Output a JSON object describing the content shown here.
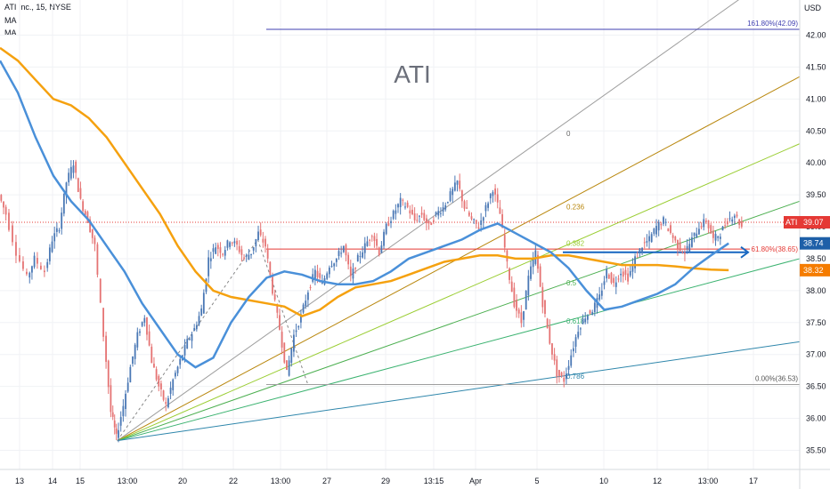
{
  "header": {
    "symbol_line": "ATI Inc., 15, NYSE",
    "indicator_1": "MA",
    "indicator_2": "MA"
  },
  "watermark": "ATI",
  "currency_label": "USD",
  "y_axis": {
    "ticks": [
      "42.00",
      "41.50",
      "41.00",
      "40.50",
      "40.00",
      "39.50",
      "39.00",
      "38.50",
      "38.00",
      "37.50",
      "37.00",
      "36.50",
      "36.00",
      "35.50"
    ],
    "min": 35.2,
    "max": 42.55
  },
  "x_axis": {
    "ticks": [
      "13",
      "14",
      "15",
      "13:00",
      "20",
      "22",
      "13:00",
      "27",
      "29",
      "13:15",
      "Apr",
      "5",
      "10",
      "12",
      "13:00",
      "17"
    ]
  },
  "price_tags": {
    "symbol": "ATI",
    "last": "39.07",
    "ma_fast": "38.74",
    "ma_slow": "38.32"
  },
  "annotations": {
    "fib_top": "161.80%(42.09)",
    "fib_mid": "61.80%(38.65)",
    "fib_low": "0.00%(36.53)",
    "fan_levels": [
      "0",
      "0.236",
      "0.382",
      "0.5",
      "0.618",
      "0.786"
    ]
  },
  "colors": {
    "ma_fast": "#4a90d9",
    "ma_slow": "#f5a10f",
    "up": "#4a78b5",
    "down": "#e57373",
    "fib_line": "#3f3fb0",
    "horizontal_red": "#e53935",
    "arrow_blue": "#1565c0",
    "tag_red": "#e53935",
    "tag_blue": "#1e5fa8",
    "tag_orange": "#f57c00"
  },
  "chart_data": {
    "type": "line",
    "title": "ATI Inc., 15, NYSE",
    "xlabel": "",
    "ylabel": "USD",
    "ylim": [
      35.2,
      42.55
    ],
    "price_path": [
      [
        0.0,
        39.5
      ],
      [
        0.4,
        39.2
      ],
      [
        1.0,
        38.6
      ],
      [
        1.6,
        38.2
      ],
      [
        2.0,
        38.5
      ],
      [
        2.6,
        38.3
      ],
      [
        3.0,
        38.8
      ],
      [
        3.4,
        39.0
      ],
      [
        3.8,
        39.7
      ],
      [
        4.2,
        40.0
      ],
      [
        4.6,
        39.4
      ],
      [
        5.0,
        39.1
      ],
      [
        5.4,
        38.7
      ],
      [
        5.9,
        37.3
      ],
      [
        6.3,
        36.1
      ],
      [
        6.6,
        35.7
      ],
      [
        7.0,
        36.2
      ],
      [
        7.4,
        36.8
      ],
      [
        7.8,
        37.3
      ],
      [
        8.2,
        37.6
      ],
      [
        8.6,
        36.9
      ],
      [
        9.0,
        36.5
      ],
      [
        9.4,
        36.2
      ],
      [
        9.8,
        36.6
      ],
      [
        10.2,
        36.9
      ],
      [
        10.6,
        37.2
      ],
      [
        11.0,
        37.4
      ],
      [
        11.4,
        37.7
      ],
      [
        11.8,
        38.5
      ],
      [
        12.2,
        38.7
      ],
      [
        12.6,
        38.6
      ],
      [
        13.0,
        38.8
      ],
      [
        13.4,
        38.7
      ],
      [
        13.8,
        38.5
      ],
      [
        14.2,
        38.6
      ],
      [
        14.6,
        38.9
      ],
      [
        15.0,
        38.7
      ],
      [
        15.4,
        38.0
      ],
      [
        15.8,
        37.4
      ],
      [
        16.2,
        36.7
      ],
      [
        16.6,
        37.3
      ],
      [
        17.0,
        37.6
      ],
      [
        17.4,
        38.0
      ],
      [
        17.8,
        38.3
      ],
      [
        18.2,
        38.1
      ],
      [
        18.6,
        38.4
      ],
      [
        19.0,
        38.5
      ],
      [
        19.4,
        38.7
      ],
      [
        19.8,
        38.2
      ],
      [
        20.2,
        38.5
      ],
      [
        20.6,
        38.7
      ],
      [
        21.0,
        38.9
      ],
      [
        21.4,
        38.6
      ],
      [
        21.8,
        39.0
      ],
      [
        22.2,
        39.2
      ],
      [
        22.6,
        39.4
      ],
      [
        23.0,
        39.3
      ],
      [
        23.4,
        39.1
      ],
      [
        23.8,
        39.2
      ],
      [
        24.2,
        39.0
      ],
      [
        24.6,
        39.2
      ],
      [
        25.0,
        39.3
      ],
      [
        25.4,
        39.5
      ],
      [
        25.8,
        39.7
      ],
      [
        26.2,
        39.3
      ],
      [
        26.6,
        39.1
      ],
      [
        27.0,
        39.0
      ],
      [
        27.4,
        39.3
      ],
      [
        27.8,
        39.6
      ],
      [
        28.2,
        39.2
      ],
      [
        28.6,
        38.4
      ],
      [
        29.0,
        37.8
      ],
      [
        29.4,
        37.5
      ],
      [
        29.8,
        38.2
      ],
      [
        30.2,
        38.6
      ],
      [
        30.6,
        37.8
      ],
      [
        31.0,
        37.2
      ],
      [
        31.4,
        36.7
      ],
      [
        31.8,
        36.6
      ],
      [
        32.2,
        37.0
      ],
      [
        32.6,
        37.4
      ],
      [
        33.0,
        37.6
      ],
      [
        33.4,
        37.7
      ],
      [
        33.8,
        37.9
      ],
      [
        34.2,
        38.3
      ],
      [
        34.6,
        38.1
      ],
      [
        35.0,
        38.3
      ],
      [
        35.4,
        38.2
      ],
      [
        35.8,
        38.5
      ],
      [
        36.2,
        38.7
      ],
      [
        36.6,
        38.8
      ],
      [
        37.0,
        39.0
      ],
      [
        37.4,
        39.1
      ],
      [
        37.8,
        38.9
      ],
      [
        38.2,
        38.7
      ],
      [
        38.6,
        38.6
      ],
      [
        39.0,
        38.8
      ],
      [
        39.4,
        39.0
      ],
      [
        39.8,
        39.1
      ],
      [
        40.2,
        38.8
      ],
      [
        40.6,
        38.9
      ],
      [
        41.0,
        39.1
      ],
      [
        41.4,
        39.2
      ],
      [
        41.8,
        39.0
      ]
    ],
    "series": [
      {
        "name": "MA",
        "values": [
          [
            0.0,
            41.6
          ],
          [
            1.0,
            41.1
          ],
          [
            2.0,
            40.4
          ],
          [
            3.0,
            39.8
          ],
          [
            4.0,
            39.4
          ],
          [
            5.0,
            39.1
          ],
          [
            6.0,
            38.7
          ],
          [
            7.0,
            38.3
          ],
          [
            8.0,
            37.8
          ],
          [
            9.0,
            37.4
          ],
          [
            10.0,
            37.0
          ],
          [
            11.0,
            36.8
          ],
          [
            12.0,
            36.95
          ],
          [
            13.0,
            37.5
          ],
          [
            14.0,
            37.9
          ],
          [
            15.0,
            38.2
          ],
          [
            16.0,
            38.3
          ],
          [
            17.0,
            38.25
          ],
          [
            18.0,
            38.15
          ],
          [
            19.0,
            38.1
          ],
          [
            20.0,
            38.1
          ],
          [
            21.0,
            38.15
          ],
          [
            22.0,
            38.3
          ],
          [
            23.0,
            38.5
          ],
          [
            24.0,
            38.6
          ],
          [
            25.0,
            38.7
          ],
          [
            26.0,
            38.8
          ],
          [
            27.0,
            38.95
          ],
          [
            28.0,
            39.05
          ],
          [
            29.0,
            38.9
          ],
          [
            30.0,
            38.75
          ],
          [
            31.0,
            38.6
          ],
          [
            32.0,
            38.35
          ],
          [
            33.0,
            38.0
          ],
          [
            34.0,
            37.7
          ],
          [
            35.0,
            37.75
          ],
          [
            36.0,
            37.85
          ],
          [
            37.0,
            37.95
          ],
          [
            38.0,
            38.1
          ],
          [
            39.0,
            38.35
          ],
          [
            40.0,
            38.55
          ],
          [
            41.0,
            38.74
          ]
        ]
      },
      {
        "name": "MA",
        "values": [
          [
            0.0,
            41.8
          ],
          [
            1.0,
            41.6
          ],
          [
            2.0,
            41.3
          ],
          [
            3.0,
            41.0
          ],
          [
            4.0,
            40.9
          ],
          [
            5.0,
            40.7
          ],
          [
            6.0,
            40.4
          ],
          [
            7.0,
            40.0
          ],
          [
            8.0,
            39.6
          ],
          [
            9.0,
            39.2
          ],
          [
            10.0,
            38.7
          ],
          [
            11.0,
            38.3
          ],
          [
            12.0,
            38.0
          ],
          [
            13.0,
            37.9
          ],
          [
            14.0,
            37.85
          ],
          [
            15.0,
            37.8
          ],
          [
            16.0,
            37.75
          ],
          [
            17.0,
            37.6
          ],
          [
            18.0,
            37.7
          ],
          [
            19.0,
            37.9
          ],
          [
            20.0,
            38.05
          ],
          [
            21.0,
            38.1
          ],
          [
            22.0,
            38.15
          ],
          [
            23.0,
            38.25
          ],
          [
            24.0,
            38.35
          ],
          [
            25.0,
            38.45
          ],
          [
            26.0,
            38.5
          ],
          [
            27.0,
            38.55
          ],
          [
            28.0,
            38.55
          ],
          [
            29.0,
            38.5
          ],
          [
            30.0,
            38.5
          ],
          [
            31.0,
            38.55
          ],
          [
            32.0,
            38.55
          ],
          [
            33.0,
            38.5
          ],
          [
            34.0,
            38.45
          ],
          [
            35.0,
            38.4
          ],
          [
            36.0,
            38.4
          ],
          [
            37.0,
            38.4
          ],
          [
            38.0,
            38.38
          ],
          [
            39.0,
            38.35
          ],
          [
            40.0,
            38.33
          ],
          [
            41.0,
            38.32
          ]
        ]
      }
    ]
  }
}
